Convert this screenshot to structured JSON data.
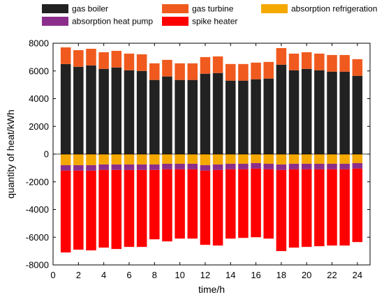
{
  "chart_data": {
    "type": "bar",
    "stacked": true,
    "xlabel": "time/h",
    "ylabel": "quantity of heat/kWh",
    "xlim": [
      0,
      25
    ],
    "ylim": [
      -8000,
      8000
    ],
    "xticks": [
      0,
      2,
      4,
      6,
      8,
      10,
      12,
      14,
      16,
      18,
      20,
      22,
      24
    ],
    "yticks": [
      -8000,
      -6000,
      -4000,
      -2000,
      0,
      2000,
      4000,
      6000,
      8000
    ],
    "grid": false,
    "legend_position": "top",
    "x": [
      1,
      2,
      3,
      4,
      5,
      6,
      7,
      8,
      9,
      10,
      11,
      12,
      13,
      14,
      15,
      16,
      17,
      18,
      19,
      20,
      21,
      22,
      23,
      24
    ],
    "series": [
      {
        "name": "gas boiler",
        "color": "#222222",
        "values": [
          6500,
          6300,
          6400,
          6150,
          6250,
          6050,
          6000,
          5350,
          5600,
          5350,
          5350,
          5800,
          5850,
          5300,
          5300,
          5400,
          5450,
          6450,
          6050,
          6150,
          6050,
          5950,
          5950,
          5650
        ]
      },
      {
        "name": "gas turbine",
        "color": "#f05a1e",
        "values": [
          1200,
          1200,
          1200,
          1200,
          1200,
          1200,
          1200,
          1200,
          1200,
          1200,
          1200,
          1200,
          1200,
          1200,
          1200,
          1200,
          1200,
          1200,
          1200,
          1200,
          1200,
          1200,
          1200,
          1200
        ]
      },
      {
        "name": "absorption refrigeration",
        "color": "#f5a800",
        "values": [
          -800,
          -800,
          -800,
          -750,
          -750,
          -750,
          -750,
          -750,
          -700,
          -700,
          -700,
          -800,
          -750,
          -700,
          -700,
          -650,
          -700,
          -750,
          -700,
          -700,
          -700,
          -700,
          -700,
          -650
        ]
      },
      {
        "name": "absorption heat pump",
        "color": "#8b2e8b",
        "values": [
          -400,
          -400,
          -400,
          -400,
          -400,
          -400,
          -400,
          -400,
          -400,
          -400,
          -400,
          -400,
          -400,
          -400,
          -400,
          -400,
          -400,
          -400,
          -400,
          -400,
          -400,
          -400,
          -400,
          -400
        ]
      },
      {
        "name": "spike heater",
        "color": "#ff0000",
        "values": [
          -5900,
          -5700,
          -5750,
          -5600,
          -5700,
          -5550,
          -5550,
          -5000,
          -5200,
          -5000,
          -5000,
          -5350,
          -5450,
          -5000,
          -4950,
          -4950,
          -5000,
          -5850,
          -5650,
          -5600,
          -5550,
          -5500,
          -5500,
          -5300
        ]
      }
    ]
  }
}
